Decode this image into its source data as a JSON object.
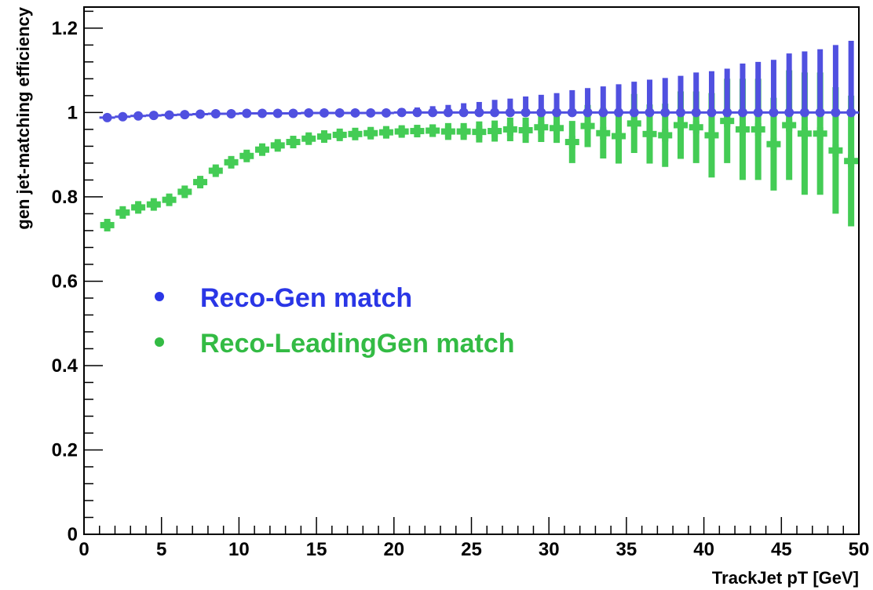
{
  "chart_data": {
    "type": "scatter",
    "xlabel": "TrackJet pT [GeV]",
    "ylabel": "gen jet-matching efficiency",
    "xlim": [
      0,
      50
    ],
    "ylim": [
      0,
      1.25
    ],
    "x_ticks": [
      {
        "value": 0,
        "label": "0"
      },
      {
        "value": 5,
        "label": "5"
      },
      {
        "value": 10,
        "label": "10"
      },
      {
        "value": 15,
        "label": "15"
      },
      {
        "value": 20,
        "label": "20"
      },
      {
        "value": 25,
        "label": "25"
      },
      {
        "value": 30,
        "label": "30"
      },
      {
        "value": 35,
        "label": "35"
      },
      {
        "value": 40,
        "label": "40"
      },
      {
        "value": 45,
        "label": "45"
      },
      {
        "value": 50,
        "label": "50"
      }
    ],
    "y_ticks": [
      {
        "value": 0,
        "label": "0"
      },
      {
        "value": 0.2,
        "label": "0.2"
      },
      {
        "value": 0.4,
        "label": "0.4"
      },
      {
        "value": 0.6,
        "label": "0.6"
      },
      {
        "value": 0.8,
        "label": "0.8"
      },
      {
        "value": 1,
        "label": "1"
      },
      {
        "value": 1.2,
        "label": "1.2"
      }
    ],
    "grid": false,
    "legend_position": "center-left",
    "x": [
      1.5,
      2.5,
      3.5,
      4.5,
      5.5,
      6.5,
      7.5,
      8.5,
      9.5,
      10.5,
      11.5,
      12.5,
      13.5,
      14.5,
      15.5,
      16.5,
      17.5,
      18.5,
      19.5,
      20.5,
      21.5,
      22.5,
      23.5,
      24.5,
      25.5,
      26.5,
      27.5,
      28.5,
      29.5,
      30.5,
      31.5,
      32.5,
      33.5,
      34.5,
      35.5,
      36.5,
      37.5,
      38.5,
      39.5,
      40.5,
      41.5,
      42.5,
      43.5,
      44.5,
      45.5,
      46.5,
      47.5,
      48.5,
      49.5
    ],
    "series": [
      {
        "name": "Reco-Gen match",
        "color": "#5050e0",
        "marker": "circle",
        "values": [
          0.988,
          0.99,
          0.992,
          0.993,
          0.994,
          0.995,
          0.996,
          0.997,
          0.997,
          0.998,
          0.998,
          0.998,
          0.998,
          0.999,
          0.999,
          0.999,
          0.999,
          0.999,
          0.999,
          1.0,
          1.0,
          1.0,
          1.0,
          1.0,
          1.0,
          1.0,
          1.0,
          1.0,
          1.0,
          1.0,
          1.0,
          1.0,
          1.0,
          1.0,
          1.0,
          1.0,
          1.0,
          1.0,
          1.0,
          1.0,
          1.0,
          1.0,
          1.0,
          1.0,
          1.0,
          1.0,
          1.0,
          1.0,
          1.0
        ],
        "err_up": [
          0.003,
          0.003,
          0.003,
          0.003,
          0.003,
          0.003,
          0.003,
          0.003,
          0.003,
          0.003,
          0.003,
          0.003,
          0.003,
          0.003,
          0.004,
          0.004,
          0.005,
          0.006,
          0.008,
          0.01,
          0.012,
          0.015,
          0.018,
          0.022,
          0.025,
          0.03,
          0.033,
          0.038,
          0.042,
          0.046,
          0.053,
          0.058,
          0.062,
          0.067,
          0.073,
          0.078,
          0.082,
          0.087,
          0.095,
          0.098,
          0.104,
          0.116,
          0.12,
          0.125,
          0.14,
          0.145,
          0.15,
          0.16,
          0.17
        ],
        "err_down": [
          0.003,
          0.003,
          0.003,
          0.003,
          0.003,
          0.003,
          0.003,
          0.003,
          0.003,
          0.003,
          0.003,
          0.003,
          0.003,
          0.003,
          0.003,
          0.003,
          0.003,
          0.003,
          0.003,
          0.003,
          0.003,
          0.003,
          0.003,
          0.003,
          0.003,
          0.003,
          0.003,
          0.003,
          0.003,
          0.003,
          0.003,
          0.003,
          0.003,
          0.003,
          0.003,
          0.003,
          0.003,
          0.003,
          0.003,
          0.003,
          0.003,
          0.003,
          0.003,
          0.003,
          0.003,
          0.003,
          0.003,
          0.003,
          0.003
        ]
      },
      {
        "name": "Reco-LeadingGen match",
        "color": "#44cc55",
        "marker": "cross",
        "values": [
          0.733,
          0.763,
          0.775,
          0.782,
          0.793,
          0.812,
          0.835,
          0.862,
          0.882,
          0.897,
          0.912,
          0.922,
          0.93,
          0.938,
          0.943,
          0.947,
          0.949,
          0.951,
          0.953,
          0.955,
          0.956,
          0.957,
          0.955,
          0.955,
          0.954,
          0.956,
          0.96,
          0.958,
          0.965,
          0.963,
          0.93,
          0.968,
          0.951,
          0.944,
          0.974,
          0.949,
          0.946,
          0.97,
          0.965,
          0.946,
          0.98,
          0.96,
          0.96,
          0.925,
          0.97,
          0.95,
          0.95,
          0.91,
          0.885
        ],
        "err": [
          0.008,
          0.008,
          0.008,
          0.008,
          0.009,
          0.009,
          0.01,
          0.01,
          0.01,
          0.01,
          0.01,
          0.01,
          0.01,
          0.01,
          0.01,
          0.01,
          0.01,
          0.012,
          0.012,
          0.012,
          0.014,
          0.015,
          0.02,
          0.02,
          0.025,
          0.025,
          0.028,
          0.03,
          0.035,
          0.035,
          0.05,
          0.05,
          0.06,
          0.065,
          0.07,
          0.07,
          0.075,
          0.08,
          0.085,
          0.1,
          0.1,
          0.12,
          0.12,
          0.11,
          0.13,
          0.145,
          0.145,
          0.15,
          0.155
        ]
      }
    ]
  },
  "legend": {
    "items": [
      {
        "label": "Reco-Gen match",
        "color": "#2a36e6"
      },
      {
        "label": "Reco-LeadingGen match",
        "color": "#33bb44"
      }
    ]
  }
}
